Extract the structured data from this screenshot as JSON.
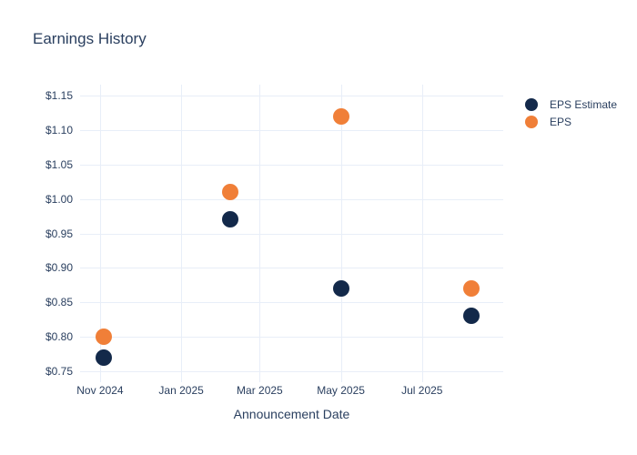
{
  "chart_data": {
    "type": "scatter",
    "title": "Earnings History",
    "xlabel": "Announcement Date",
    "ylabel": "",
    "grid": true,
    "legend_position": "right",
    "x_range": [
      "2024-10-17",
      "2025-08-31"
    ],
    "y_range": [
      0.734,
      1.166
    ],
    "x_ticks": [
      {
        "date": "2024-11-01",
        "label": "Nov 2024"
      },
      {
        "date": "2025-01-01",
        "label": "Jan 2025"
      },
      {
        "date": "2025-03-01",
        "label": "Mar 2025"
      },
      {
        "date": "2025-05-01",
        "label": "May 2025"
      },
      {
        "date": "2025-07-01",
        "label": "Jul 2025"
      }
    ],
    "y_ticks": [
      {
        "value": 0.75,
        "label": "$0.75"
      },
      {
        "value": 0.8,
        "label": "$0.80"
      },
      {
        "value": 0.85,
        "label": "$0.85"
      },
      {
        "value": 0.9,
        "label": "$0.90"
      },
      {
        "value": 0.95,
        "label": "$0.95"
      },
      {
        "value": 1.0,
        "label": "$1.00"
      },
      {
        "value": 1.05,
        "label": "$1.05"
      },
      {
        "value": 1.1,
        "label": "$1.10"
      },
      {
        "value": 1.15,
        "label": "$1.15"
      }
    ],
    "series": [
      {
        "name": "EPS Estimate",
        "color": "#13294a",
        "points": [
          {
            "x": "2024-11-04",
            "y": 0.77
          },
          {
            "x": "2025-02-07",
            "y": 0.97
          },
          {
            "x": "2025-05-01",
            "y": 0.87
          },
          {
            "x": "2025-08-07",
            "y": 0.83
          }
        ]
      },
      {
        "name": "EPS",
        "color": "#f07f38",
        "points": [
          {
            "x": "2024-11-04",
            "y": 0.8
          },
          {
            "x": "2025-02-07",
            "y": 1.01
          },
          {
            "x": "2025-05-01",
            "y": 1.12
          },
          {
            "x": "2025-08-07",
            "y": 0.87
          }
        ]
      }
    ],
    "colors": {
      "grid": "#e8eef8",
      "text": "#2a3f5f",
      "background": "#ffffff"
    }
  }
}
